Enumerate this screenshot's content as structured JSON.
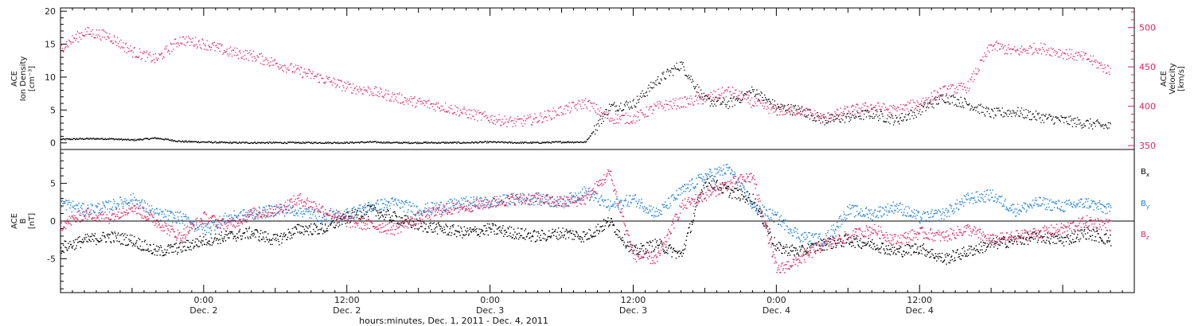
{
  "chart_data": [
    {
      "type": "scatter",
      "panel": "top",
      "ylabel_left": [
        "ACE",
        "Ion Density",
        "[cm⁻³]"
      ],
      "ylabel_right": [
        "ACE",
        "Velocity",
        "[km/s]"
      ],
      "ylim_left": [
        -1,
        20.5
      ],
      "ylim_right": [
        345,
        525
      ],
      "yticks_left": [
        0,
        5,
        10,
        15,
        20
      ],
      "yticks_right": [
        350,
        400,
        450,
        500
      ],
      "ytick_labels_left": [
        "0",
        "5",
        "10",
        "15",
        "20"
      ],
      "ytick_labels_right": [
        "350",
        "400",
        "450",
        "500"
      ],
      "grid": false,
      "series": [
        {
          "name": "Ion Density",
          "axis": "left",
          "color": "#000000",
          "x": [
            0,
            2,
            4,
            6,
            8,
            10,
            12,
            14,
            16,
            18,
            20,
            22,
            24,
            26,
            28,
            30,
            32,
            34,
            36,
            38,
            40,
            42,
            44,
            46,
            48,
            50,
            52,
            54,
            56,
            58,
            60,
            62,
            64,
            66,
            68,
            70,
            72,
            74,
            76,
            78,
            80,
            82,
            84,
            86,
            88
          ],
          "y": [
            0.6,
            0.7,
            0.7,
            0.5,
            0.8,
            0.3,
            0.2,
            0.1,
            0.1,
            0.1,
            0.1,
            0.1,
            0.1,
            0.2,
            0.1,
            0.1,
            0.1,
            0.1,
            0.2,
            0.1,
            0.1,
            0.2,
            0.2,
            5.5,
            6.0,
            9.5,
            12.0,
            6.5,
            6.0,
            8.0,
            5.5,
            5.0,
            3.5,
            4.0,
            4.5,
            3.5,
            5.0,
            7.0,
            6.0,
            4.5,
            4.8,
            4.0,
            3.5,
            3.0,
            2.5
          ]
        },
        {
          "name": "Velocity",
          "axis": "right",
          "color": "#e0245e",
          "x": [
            0,
            2,
            4,
            6,
            8,
            10,
            12,
            14,
            16,
            18,
            20,
            22,
            24,
            26,
            28,
            30,
            32,
            34,
            36,
            38,
            40,
            42,
            44,
            46,
            48,
            50,
            52,
            54,
            56,
            58,
            60,
            62,
            64,
            66,
            68,
            70,
            72,
            74,
            76,
            78,
            80,
            82,
            84,
            86,
            88
          ],
          "y": [
            475,
            495,
            490,
            470,
            460,
            485,
            480,
            470,
            465,
            455,
            445,
            435,
            425,
            420,
            412,
            405,
            400,
            392,
            385,
            380,
            385,
            395,
            405,
            385,
            385,
            400,
            405,
            410,
            420,
            405,
            395,
            395,
            385,
            395,
            400,
            395,
            405,
            420,
            425,
            478,
            470,
            475,
            468,
            462,
            445
          ]
        }
      ]
    },
    {
      "type": "line",
      "panel": "bottom",
      "ylabel": [
        "ACE",
        "B",
        "[nT]"
      ],
      "ylim": [
        -9.5,
        9.5
      ],
      "yticks": [
        -5,
        0,
        5
      ],
      "ytick_labels": [
        "-5",
        "0",
        "5"
      ],
      "zero_line": true,
      "grid": false,
      "legend_position": "right",
      "series": [
        {
          "name": "B",
          "sub": "x",
          "color": "#000000",
          "x": [
            0,
            2,
            4,
            6,
            8,
            10,
            12,
            14,
            16,
            18,
            20,
            22,
            24,
            26,
            28,
            30,
            32,
            34,
            36,
            38,
            40,
            42,
            44,
            46,
            48,
            50,
            52,
            54,
            56,
            58,
            60,
            62,
            64,
            66,
            68,
            70,
            72,
            74,
            76,
            78,
            80,
            82,
            84,
            86,
            88
          ],
          "y": [
            -3.5,
            -2.5,
            -2.0,
            -2.5,
            -4.0,
            -3.5,
            -2.5,
            -2.0,
            -1.5,
            -2.5,
            -1.0,
            -1.0,
            0.5,
            1.5,
            0.5,
            -0.5,
            -1.0,
            -1.5,
            -1.0,
            -1.5,
            -2.0,
            -1.5,
            -2.0,
            0.0,
            -4.0,
            -3.0,
            -4.5,
            5.5,
            4.0,
            3.0,
            -3.5,
            -4.0,
            -3.0,
            -2.5,
            -3.0,
            -4.0,
            -3.5,
            -5.0,
            -4.0,
            -3.0,
            -2.5,
            -2.0,
            -2.5,
            -1.5,
            -2.5
          ]
        },
        {
          "name": "B",
          "sub": "y",
          "color": "#1e7fd8",
          "x": [
            0,
            2,
            4,
            6,
            8,
            10,
            12,
            14,
            16,
            18,
            20,
            22,
            24,
            26,
            28,
            30,
            32,
            34,
            36,
            38,
            40,
            42,
            44,
            46,
            48,
            50,
            52,
            54,
            56,
            58,
            60,
            62,
            64,
            66,
            68,
            70,
            72,
            74,
            76,
            78,
            80,
            82,
            84,
            86,
            88
          ],
          "y": [
            2.5,
            1.5,
            2.0,
            3.0,
            1.0,
            0.5,
            -1.0,
            0.5,
            1.0,
            1.5,
            1.5,
            0.5,
            1.0,
            2.0,
            2.5,
            1.5,
            2.0,
            2.5,
            2.5,
            3.0,
            3.0,
            2.5,
            4.0,
            2.0,
            3.0,
            1.0,
            4.0,
            6.0,
            7.0,
            2.0,
            0.5,
            -2.0,
            -2.5,
            1.5,
            1.0,
            2.0,
            0.5,
            1.0,
            3.0,
            3.5,
            1.5,
            2.5,
            2.0,
            2.5,
            1.5
          ]
        },
        {
          "name": "B",
          "sub": "z",
          "color": "#e0245e",
          "x": [
            0,
            2,
            4,
            6,
            8,
            10,
            12,
            14,
            16,
            18,
            20,
            22,
            24,
            26,
            28,
            30,
            32,
            34,
            36,
            38,
            40,
            42,
            44,
            46,
            48,
            50,
            52,
            54,
            56,
            58,
            60,
            62,
            64,
            66,
            68,
            70,
            72,
            74,
            76,
            78,
            80,
            82,
            84,
            86,
            88
          ],
          "y": [
            -0.5,
            1.0,
            0.5,
            2.0,
            0.0,
            -2.0,
            0.5,
            -0.5,
            1.0,
            1.5,
            3.0,
            1.5,
            0.0,
            -0.5,
            -1.0,
            0.5,
            1.5,
            2.0,
            2.5,
            3.0,
            3.0,
            2.5,
            3.0,
            6.5,
            -4.5,
            -5.0,
            2.0,
            3.5,
            5.0,
            6.0,
            -6.5,
            -5.0,
            -3.0,
            -2.0,
            -1.0,
            -2.5,
            -1.5,
            -2.0,
            -1.0,
            -2.5,
            -2.0,
            -1.5,
            -1.0,
            0.0,
            -0.5
          ]
        }
      ]
    }
  ],
  "x_axis": {
    "range_hours": [
      0,
      90
    ],
    "tick_major_hours": [
      0,
      12,
      24,
      36,
      48,
      60,
      72,
      84
    ],
    "tick_labels": [
      {
        "hour": 12,
        "time": "0:00",
        "date": "Dec. 2"
      },
      {
        "hour": 24,
        "time": "12:00",
        "date": "Dec. 2"
      },
      {
        "hour": 36,
        "time": "0:00",
        "date": "Dec. 3"
      },
      {
        "hour": 48,
        "time": "12:00",
        "date": "Dec. 3"
      },
      {
        "hour": 60,
        "time": "0:00",
        "date": "Dec. 4"
      },
      {
        "hour": 72,
        "time": "12:00",
        "date": "Dec. 4"
      }
    ],
    "title": "hours:minutes, Dec.  1, 2011 - Dec.  4, 2011"
  },
  "colors": {
    "density": "#000000",
    "velocity": "#e0245e",
    "bx": "#000000",
    "by": "#1e7fd8",
    "bz": "#e0245e",
    "axis": "#000000"
  }
}
